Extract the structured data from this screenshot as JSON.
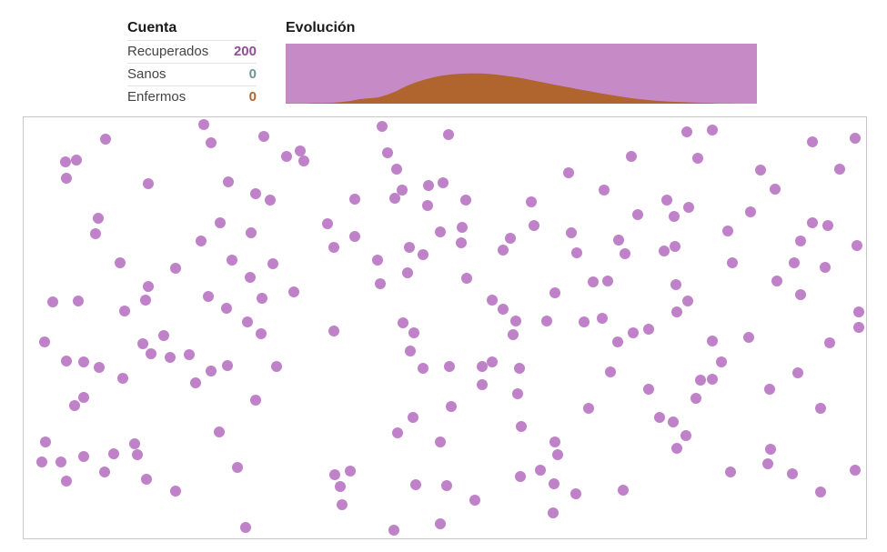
{
  "count": {
    "title": "Cuenta",
    "rows": [
      {
        "label": "Recuperados",
        "value": "200",
        "color": "#8e4f95"
      },
      {
        "label": "Sanos",
        "value": "0",
        "color": "#6f939a"
      },
      {
        "label": "Enfermos",
        "value": "0",
        "color": "#b0642e"
      }
    ]
  },
  "evolution": {
    "title": "Evolución"
  },
  "colors": {
    "healthy": "#afc5c9",
    "sick": "#b0642e",
    "recovered": "#c68bc6",
    "dot": "#bf82c9"
  },
  "chart_data": [
    {
      "type": "area",
      "stacked": true,
      "total": 200,
      "series": [
        {
          "key": "sick",
          "values": [
            1,
            1,
            1,
            2,
            2,
            3,
            5,
            9,
            15,
            18,
            21,
            30,
            42,
            58,
            70,
            80,
            88,
            94,
            98,
            100,
            101,
            101,
            99,
            96,
            92,
            88,
            82,
            76,
            70,
            64,
            58,
            52,
            46,
            41,
            35,
            30,
            25,
            20,
            16,
            13,
            10,
            8,
            6,
            5,
            4,
            3,
            2,
            1,
            1,
            0,
            0,
            0
          ]
        },
        {
          "key": "recovered",
          "values": [
            0,
            0,
            0,
            0,
            0,
            0,
            0,
            1,
            1,
            2,
            3,
            5,
            8,
            12,
            17,
            24,
            32,
            40,
            50,
            60,
            68,
            76,
            84,
            92,
            100,
            108,
            116,
            124,
            132,
            138,
            145,
            150,
            155,
            160,
            165,
            170,
            175,
            180,
            184,
            187,
            190,
            192,
            194,
            195,
            196,
            197,
            198,
            199,
            199,
            200,
            200,
            200
          ]
        },
        {
          "key": "healthy",
          "values": [
            199,
            199,
            199,
            198,
            198,
            197,
            195,
            190,
            184,
            180,
            176,
            165,
            150,
            130,
            113,
            96,
            80,
            66,
            52,
            40,
            31,
            23,
            17,
            12,
            8,
            4,
            2,
            0,
            0,
            0,
            0,
            0,
            0,
            0,
            0,
            0,
            0,
            0,
            0,
            0,
            0,
            0,
            0,
            0,
            0,
            0,
            0,
            0,
            0,
            0,
            0,
            0
          ]
        }
      ]
    },
    {
      "type": "scatter",
      "points": [
        [
          224,
          137
        ],
        [
          420,
          139
        ],
        [
          116,
          153
        ],
        [
          232,
          157
        ],
        [
          290,
          150
        ],
        [
          493,
          148
        ],
        [
          755,
          145
        ],
        [
          783,
          143
        ],
        [
          940,
          152
        ],
        [
          893,
          156
        ],
        [
          72,
          178
        ],
        [
          84,
          176
        ],
        [
          330,
          166
        ],
        [
          315,
          172
        ],
        [
          334,
          177
        ],
        [
          426,
          168
        ],
        [
          694,
          172
        ],
        [
          767,
          174
        ],
        [
          73,
          196
        ],
        [
          163,
          202
        ],
        [
          251,
          200
        ],
        [
          436,
          186
        ],
        [
          471,
          204
        ],
        [
          487,
          201
        ],
        [
          625,
          190
        ],
        [
          836,
          187
        ],
        [
          923,
          186
        ],
        [
          442,
          209
        ],
        [
          281,
          213
        ],
        [
          297,
          220
        ],
        [
          390,
          219
        ],
        [
          434,
          218
        ],
        [
          470,
          226
        ],
        [
          512,
          220
        ],
        [
          584,
          222
        ],
        [
          664,
          209
        ],
        [
          733,
          220
        ],
        [
          757,
          228
        ],
        [
          852,
          208
        ],
        [
          108,
          240
        ],
        [
          242,
          245
        ],
        [
          360,
          246
        ],
        [
          508,
          250
        ],
        [
          587,
          248
        ],
        [
          701,
          236
        ],
        [
          741,
          238
        ],
        [
          825,
          233
        ],
        [
          893,
          245
        ],
        [
          910,
          248
        ],
        [
          105,
          257
        ],
        [
          221,
          265
        ],
        [
          276,
          256
        ],
        [
          390,
          260
        ],
        [
          484,
          255
        ],
        [
          561,
          262
        ],
        [
          628,
          256
        ],
        [
          800,
          254
        ],
        [
          367,
          272
        ],
        [
          450,
          272
        ],
        [
          507,
          267
        ],
        [
          553,
          275
        ],
        [
          634,
          278
        ],
        [
          680,
          264
        ],
        [
          687,
          279
        ],
        [
          730,
          276
        ],
        [
          742,
          271
        ],
        [
          880,
          265
        ],
        [
          942,
          270
        ],
        [
          132,
          289
        ],
        [
          193,
          295
        ],
        [
          255,
          286
        ],
        [
          300,
          290
        ],
        [
          415,
          286
        ],
        [
          465,
          280
        ],
        [
          805,
          289
        ],
        [
          873,
          289
        ],
        [
          907,
          294
        ],
        [
          275,
          305
        ],
        [
          448,
          300
        ],
        [
          513,
          306
        ],
        [
          163,
          315
        ],
        [
          652,
          310
        ],
        [
          668,
          309
        ],
        [
          743,
          313
        ],
        [
          854,
          309
        ],
        [
          58,
          332
        ],
        [
          86,
          331
        ],
        [
          160,
          330
        ],
        [
          229,
          326
        ],
        [
          288,
          328
        ],
        [
          323,
          321
        ],
        [
          418,
          312
        ],
        [
          541,
          330
        ],
        [
          610,
          322
        ],
        [
          880,
          324
        ],
        [
          137,
          342
        ],
        [
          249,
          339
        ],
        [
          553,
          340
        ],
        [
          744,
          343
        ],
        [
          756,
          331
        ],
        [
          944,
          343
        ],
        [
          272,
          354
        ],
        [
          367,
          364
        ],
        [
          443,
          355
        ],
        [
          455,
          366
        ],
        [
          567,
          353
        ],
        [
          601,
          353
        ],
        [
          642,
          354
        ],
        [
          662,
          350
        ],
        [
          49,
          376
        ],
        [
          157,
          378
        ],
        [
          180,
          369
        ],
        [
          287,
          367
        ],
        [
          564,
          368
        ],
        [
          679,
          376
        ],
        [
          696,
          366
        ],
        [
          713,
          362
        ],
        [
          783,
          375
        ],
        [
          823,
          371
        ],
        [
          912,
          377
        ],
        [
          944,
          360
        ],
        [
          166,
          389
        ],
        [
          187,
          393
        ],
        [
          208,
          390
        ],
        [
          451,
          386
        ],
        [
          73,
          397
        ],
        [
          92,
          398
        ],
        [
          109,
          404
        ],
        [
          232,
          408
        ],
        [
          250,
          402
        ],
        [
          304,
          403
        ],
        [
          465,
          405
        ],
        [
          494,
          403
        ],
        [
          530,
          403
        ],
        [
          541,
          398
        ],
        [
          571,
          405
        ],
        [
          671,
          409
        ],
        [
          770,
          418
        ],
        [
          783,
          417
        ],
        [
          793,
          398
        ],
        [
          877,
          410
        ],
        [
          135,
          416
        ],
        [
          215,
          421
        ],
        [
          530,
          423
        ],
        [
          713,
          428
        ],
        [
          846,
          428
        ],
        [
          92,
          437
        ],
        [
          82,
          446
        ],
        [
          281,
          440
        ],
        [
          496,
          447
        ],
        [
          569,
          433
        ],
        [
          647,
          449
        ],
        [
          765,
          438
        ],
        [
          902,
          449
        ],
        [
          454,
          459
        ],
        [
          725,
          459
        ],
        [
          740,
          464
        ],
        [
          241,
          475
        ],
        [
          437,
          476
        ],
        [
          573,
          469
        ],
        [
          754,
          479
        ],
        [
          50,
          486
        ],
        [
          148,
          488
        ],
        [
          484,
          486
        ],
        [
          610,
          486
        ],
        [
          125,
          499
        ],
        [
          151,
          500
        ],
        [
          46,
          508
        ],
        [
          67,
          508
        ],
        [
          92,
          502
        ],
        [
          613,
          500
        ],
        [
          744,
          493
        ],
        [
          847,
          494
        ],
        [
          115,
          519
        ],
        [
          261,
          514
        ],
        [
          368,
          522
        ],
        [
          385,
          518
        ],
        [
          572,
          524
        ],
        [
          594,
          517
        ],
        [
          803,
          519
        ],
        [
          844,
          510
        ],
        [
          871,
          521
        ],
        [
          940,
          517
        ],
        [
          73,
          529
        ],
        [
          161,
          527
        ],
        [
          374,
          535
        ],
        [
          457,
          533
        ],
        [
          491,
          534
        ],
        [
          609,
          532
        ],
        [
          193,
          540
        ],
        [
          376,
          555
        ],
        [
          522,
          550
        ],
        [
          633,
          543
        ],
        [
          685,
          539
        ],
        [
          902,
          541
        ],
        [
          608,
          564
        ],
        [
          270,
          580
        ],
        [
          433,
          583
        ],
        [
          484,
          576
        ]
      ]
    }
  ]
}
